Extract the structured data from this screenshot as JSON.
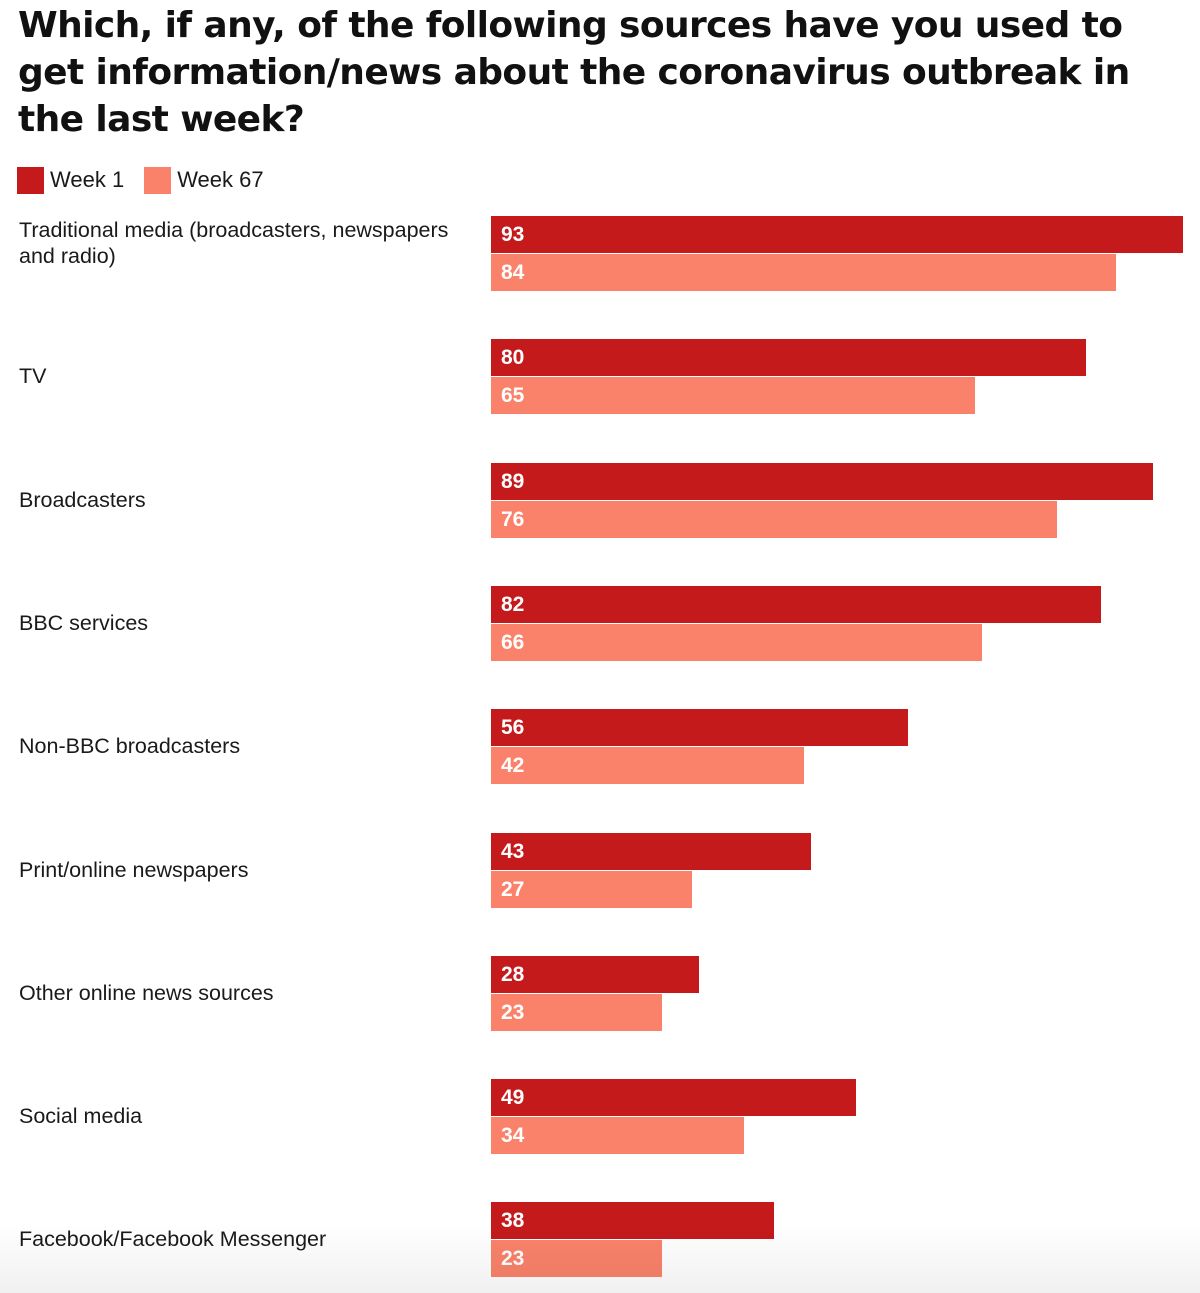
{
  "chart_data": {
    "type": "bar",
    "orientation": "horizontal",
    "title": "Which, if any, of the following sources have you used to get information/news about the coronavirus outbreak in the last week?",
    "xlabel": "",
    "ylabel": "",
    "xlim": [
      0,
      93
    ],
    "grid": false,
    "legend_position": "top-left",
    "categories": [
      "Traditional media (broadcasters, newspapers and radio)",
      "TV",
      "Broadcasters",
      "BBC services",
      "Non-BBC broadcasters",
      "Print/online newspapers",
      "Other online news sources",
      "Social media",
      "Facebook/Facebook Messenger"
    ],
    "series": [
      {
        "name": "Week 1",
        "color": "#c41a1c",
        "values": [
          93,
          80,
          89,
          82,
          56,
          43,
          28,
          49,
          38
        ]
      },
      {
        "name": "Week 67",
        "color": "#fa826a",
        "values": [
          84,
          65,
          76,
          66,
          42,
          27,
          23,
          34,
          23
        ]
      }
    ]
  }
}
